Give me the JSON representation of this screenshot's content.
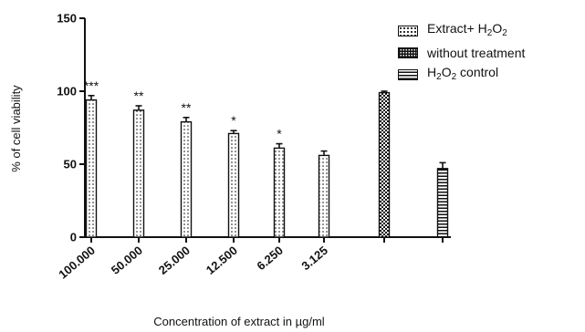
{
  "chart_data": {
    "type": "bar",
    "categories": [
      "100.000",
      "50.000",
      "25.000",
      "12.500",
      "6.250",
      "3.125",
      "",
      ""
    ],
    "series": [
      {
        "name": "Extract+ H2O2",
        "values": [
          94,
          87,
          79,
          71,
          61,
          56,
          null,
          null
        ],
        "errors": [
          3,
          3,
          3,
          2,
          3,
          3,
          null,
          null
        ]
      },
      {
        "name": "without treatment",
        "values": [
          null,
          null,
          null,
          null,
          null,
          null,
          99,
          null
        ],
        "errors": [
          null,
          null,
          null,
          null,
          null,
          null,
          1,
          null
        ]
      },
      {
        "name": "H2O2 control",
        "values": [
          null,
          null,
          null,
          null,
          null,
          null,
          null,
          47
        ],
        "errors": [
          null,
          null,
          null,
          null,
          null,
          null,
          null,
          4
        ]
      }
    ],
    "significance": [
      "***",
      "**",
      "**",
      "*",
      "*",
      "",
      "",
      ""
    ],
    "xlabel": "Concentration of extract in µg/ml",
    "ylabel": "% of cell viability",
    "ylim": [
      0,
      150
    ],
    "yticks": [
      "0",
      "50",
      "100",
      "150"
    ],
    "grid": false,
    "legend_position": "top-right",
    "colors": {
      "ink": "#111111",
      "background": "#ffffff"
    }
  },
  "legend": {
    "items": [
      {
        "text": "Extract+ H",
        "sub1": "2",
        "mid": "O",
        "sub2": "2"
      },
      {
        "text": "without treatment"
      },
      {
        "pre": "H",
        "sub1": "2",
        "mid": "O",
        "sub2": "2",
        "text": " control"
      }
    ]
  }
}
